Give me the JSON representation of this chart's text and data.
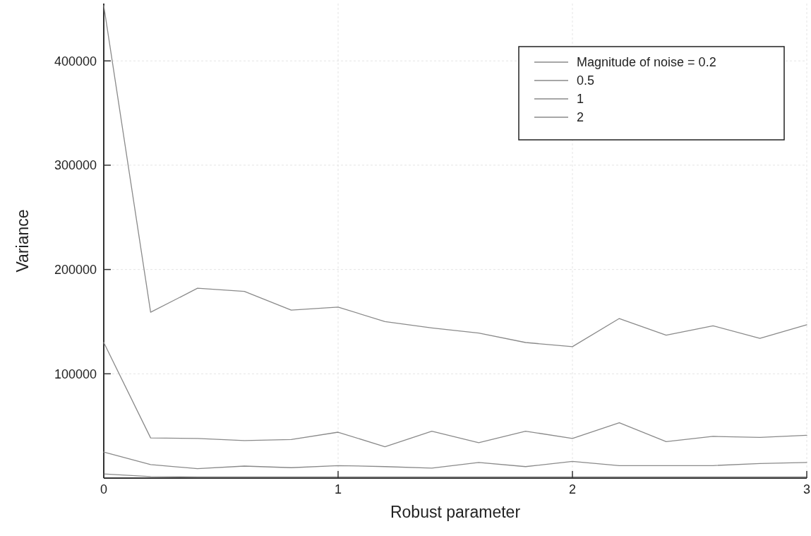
{
  "chart_data": {
    "type": "line",
    "xlabel": "Robust parameter",
    "ylabel": "Variance",
    "xlim": [
      0,
      3
    ],
    "xticks": [
      0,
      1,
      2,
      3
    ],
    "ylim": [
      0,
      455000
    ],
    "yticks": [
      100000,
      200000,
      300000,
      400000
    ],
    "grid": true,
    "legend": "top right",
    "line_style": "solid",
    "marker": "none",
    "x": [
      0,
      0.2,
      0.4,
      0.6,
      0.8,
      1,
      1.2,
      1.4,
      1.6,
      1.8,
      2,
      2.2,
      2.4,
      2.6,
      2.8,
      3
    ],
    "series": [
      {
        "name": "Magnitude of noise = 0.2",
        "color": "#8a8a8a",
        "values": [
          4000,
          1500,
          1000,
          1000,
          1000,
          1000,
          1000,
          1000,
          1000,
          1000,
          1000,
          1000,
          1000,
          1000,
          1000,
          1000
        ]
      },
      {
        "name": "0.5",
        "color": "#8a8a8a",
        "values": [
          25000,
          13000,
          9000,
          11500,
          10000,
          12000,
          11000,
          9500,
          15000,
          11000,
          16000,
          12000,
          12000,
          12000,
          14000,
          15000
        ]
      },
      {
        "name": "1",
        "color": "#8a8a8a",
        "values": [
          130000,
          38500,
          38000,
          36000,
          37000,
          44000,
          30000,
          45000,
          34000,
          45000,
          38000,
          53000,
          35000,
          40000,
          39000,
          41000
        ]
      },
      {
        "name": "2",
        "color": "#8a8a8a",
        "values": [
          453000,
          159000,
          182000,
          179000,
          161000,
          164000,
          150000,
          144000,
          139000,
          130000,
          126000,
          153000,
          137000,
          146000,
          134000,
          147000
        ]
      }
    ]
  }
}
